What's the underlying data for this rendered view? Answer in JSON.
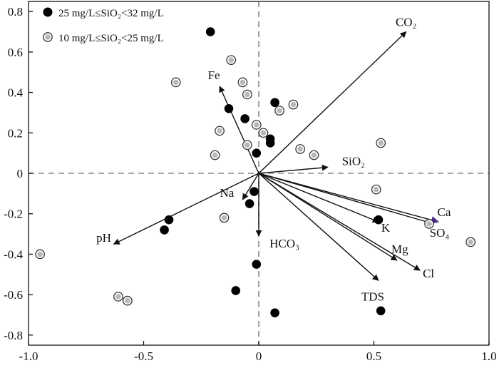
{
  "chart_data": {
    "type": "scatter",
    "title": "",
    "xlabel": "",
    "ylabel": "",
    "xlim": [
      -1.0,
      1.0
    ],
    "ylim": [
      -0.85,
      0.85
    ],
    "xticks": [
      -1.0,
      -0.5,
      0,
      0.5,
      1.0
    ],
    "xtick_labels": [
      "-1.0",
      "-0.5",
      "0",
      "0.5",
      "1.0"
    ],
    "yticks": [
      -0.8,
      -0.6,
      -0.4,
      -0.2,
      0,
      0.2,
      0.4,
      0.6,
      0.8
    ],
    "ytick_labels": [
      "-0.8",
      "-0.6",
      "-0.4",
      "-0.2",
      "0",
      "0.2",
      "0.4",
      "0.6",
      "0.8"
    ],
    "grid": false,
    "reference_lines": {
      "x": 0,
      "y": 0,
      "style": "dashed"
    },
    "legend": {
      "placement": "top-left",
      "entries": [
        {
          "label": "25  mg/L≤SiO₂<32 mg/L",
          "marker": "filled-circle",
          "color": "#000000"
        },
        {
          "label": "10  mg/L≤SiO₂<25 mg/L",
          "marker": "ringed-circle",
          "color": "#555555"
        }
      ]
    },
    "series": [
      {
        "name": "25  mg/L≤SiO₂<32 mg/L",
        "marker": "filled-circle",
        "points": [
          [
            -0.21,
            0.7
          ],
          [
            0.07,
            0.35
          ],
          [
            -0.13,
            0.32
          ],
          [
            -0.06,
            0.27
          ],
          [
            0.05,
            0.17
          ],
          [
            0.05,
            0.15
          ],
          [
            -0.01,
            0.1
          ],
          [
            -0.02,
            -0.09
          ],
          [
            -0.04,
            -0.15
          ],
          [
            -0.39,
            -0.23
          ],
          [
            -0.41,
            -0.28
          ],
          [
            0.52,
            -0.23
          ],
          [
            -0.01,
            -0.45
          ],
          [
            -0.1,
            -0.58
          ],
          [
            0.07,
            -0.69
          ],
          [
            0.53,
            -0.68
          ]
        ]
      },
      {
        "name": "10  mg/L≤SiO₂<25 mg/L",
        "marker": "ringed-circle",
        "points": [
          [
            -0.12,
            0.56
          ],
          [
            -0.36,
            0.45
          ],
          [
            -0.07,
            0.45
          ],
          [
            -0.05,
            0.39
          ],
          [
            0.15,
            0.34
          ],
          [
            0.09,
            0.31
          ],
          [
            -0.01,
            0.24
          ],
          [
            0.02,
            0.2
          ],
          [
            -0.17,
            0.21
          ],
          [
            -0.05,
            0.14
          ],
          [
            0.18,
            0.12
          ],
          [
            0.24,
            0.09
          ],
          [
            -0.19,
            0.09
          ],
          [
            0.53,
            0.15
          ],
          [
            0.51,
            -0.08
          ],
          [
            -0.15,
            -0.22
          ],
          [
            0.74,
            -0.25
          ],
          [
            0.92,
            -0.34
          ],
          [
            -0.95,
            -0.4
          ],
          [
            -0.61,
            -0.61
          ],
          [
            -0.57,
            -0.63
          ]
        ]
      }
    ],
    "loadings": [
      {
        "label": "CO₂",
        "x": 0.64,
        "y": 0.7
      },
      {
        "label": "Fe",
        "x": -0.17,
        "y": 0.43
      },
      {
        "label": "SiO₂",
        "x": 0.3,
        "y": 0.03
      },
      {
        "label": "Na",
        "x": -0.07,
        "y": -0.13
      },
      {
        "label": "HCO₃",
        "x": 0.0,
        "y": -0.31
      },
      {
        "label": "pH",
        "x": -0.63,
        "y": -0.35
      },
      {
        "label": "Ca",
        "x": 0.78,
        "y": -0.24
      },
      {
        "label": "K",
        "x": 0.52,
        "y": -0.24
      },
      {
        "label": "SO₄",
        "x": 0.76,
        "y": -0.25
      },
      {
        "label": "Mg",
        "x": 0.6,
        "y": -0.43
      },
      {
        "label": "Cl",
        "x": 0.7,
        "y": -0.48
      },
      {
        "label": "TDS",
        "x": 0.52,
        "y": -0.53
      }
    ]
  }
}
